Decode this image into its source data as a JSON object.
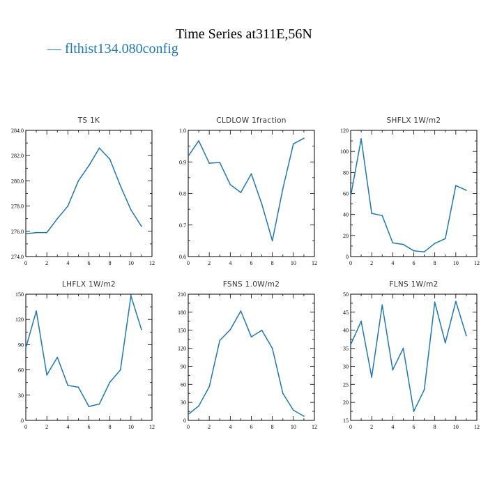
{
  "figure": {
    "title": "Time Series at311E,56N",
    "legend_label": "— flthist134.080config",
    "series_color": "#1f77b4"
  },
  "chart_data": [
    {
      "type": "line",
      "title": "TS   1K",
      "x": [
        0,
        1,
        2,
        3,
        4,
        5,
        6,
        7,
        8,
        9,
        10,
        11
      ],
      "series": [
        {
          "values": [
            275.8,
            275.9,
            275.9,
            277.0,
            278.0,
            280.0,
            281.2,
            282.6,
            281.7,
            279.6,
            277.7,
            276.4
          ]
        }
      ],
      "xlim": [
        0,
        12
      ],
      "ylim": [
        274,
        284
      ],
      "xticks": [
        0,
        2,
        4,
        6,
        8,
        10,
        12
      ],
      "yticks": [
        274,
        276,
        278,
        280,
        282,
        284
      ],
      "ytick_labels": [
        "274.0",
        "276.0",
        "278.0",
        "280.0",
        "282.0",
        "284.0"
      ]
    },
    {
      "type": "line",
      "title": "CLDLOW   1fraction",
      "x": [
        0,
        1,
        2,
        3,
        4,
        5,
        6,
        7,
        8,
        9,
        10,
        11
      ],
      "series": [
        {
          "values": [
            0.918,
            0.967,
            0.896,
            0.898,
            0.828,
            0.803,
            0.862,
            0.766,
            0.65,
            0.815,
            0.957,
            0.975
          ]
        }
      ],
      "xlim": [
        0,
        12
      ],
      "ylim": [
        0.6,
        1.0
      ],
      "xticks": [
        0,
        2,
        4,
        6,
        8,
        10,
        12
      ],
      "yticks": [
        0.6,
        0.7,
        0.8,
        0.9,
        1.0
      ],
      "ytick_labels": [
        "0.6",
        "0.7",
        "0.8",
        "0.9",
        "1.0"
      ]
    },
    {
      "type": "line",
      "title": "SHFLX   1W/m2",
      "x": [
        0,
        1,
        2,
        3,
        4,
        5,
        6,
        7,
        8,
        9,
        10,
        11
      ],
      "series": [
        {
          "values": [
            57,
            112,
            41,
            39,
            13,
            11.5,
            5.5,
            4.5,
            12.5,
            17,
            67.5,
            63
          ]
        }
      ],
      "xlim": [
        0,
        12
      ],
      "ylim": [
        0,
        120
      ],
      "xticks": [
        0,
        2,
        4,
        6,
        8,
        10,
        12
      ],
      "yticks": [
        0,
        20,
        40,
        60,
        80,
        100,
        120
      ],
      "ytick_labels": [
        "0",
        "20",
        "40",
        "60",
        "80",
        "100",
        "120"
      ]
    },
    {
      "type": "line",
      "title": "LHFLX   1W/m2",
      "x": [
        0,
        1,
        2,
        3,
        4,
        5,
        6,
        7,
        8,
        9,
        10,
        11
      ],
      "series": [
        {
          "values": [
            86,
            130,
            54,
            75,
            41.5,
            39.5,
            16.5,
            19.5,
            45.5,
            60,
            148,
            108
          ]
        }
      ],
      "xlim": [
        0,
        12
      ],
      "ylim": [
        0,
        150
      ],
      "xticks": [
        0,
        2,
        4,
        6,
        8,
        10,
        12
      ],
      "yticks": [
        0,
        30,
        60,
        90,
        120,
        150
      ],
      "ytick_labels": [
        "0",
        "30",
        "60",
        "90",
        "120",
        "150"
      ]
    },
    {
      "type": "line",
      "title": "FSNS   1.0W/m2",
      "x": [
        0,
        1,
        2,
        3,
        4,
        5,
        6,
        7,
        8,
        9,
        10,
        11
      ],
      "series": [
        {
          "values": [
            10,
            24,
            56,
            133,
            151,
            182,
            139,
            150,
            120,
            45,
            17,
            7
          ]
        }
      ],
      "xlim": [
        0,
        12
      ],
      "ylim": [
        0,
        210
      ],
      "xticks": [
        0,
        2,
        4,
        6,
        8,
        10,
        12
      ],
      "yticks": [
        0,
        30,
        60,
        90,
        120,
        150,
        180,
        210
      ],
      "ytick_labels": [
        "0",
        "30",
        "60",
        "90",
        "120",
        "150",
        "180",
        "210"
      ]
    },
    {
      "type": "line",
      "title": "FLNS   1W/m2",
      "x": [
        0,
        1,
        2,
        3,
        4,
        5,
        6,
        7,
        8,
        9,
        10,
        11
      ],
      "series": [
        {
          "values": [
            36,
            42.5,
            27,
            47,
            29,
            35,
            17.5,
            23.5,
            47.8,
            36.5,
            48,
            38.5
          ]
        }
      ],
      "xlim": [
        0,
        12
      ],
      "ylim": [
        15,
        50
      ],
      "xticks": [
        0,
        2,
        4,
        6,
        8,
        10,
        12
      ],
      "yticks": [
        15,
        20,
        25,
        30,
        35,
        40,
        45,
        50
      ],
      "ytick_labels": [
        "15",
        "20",
        "25",
        "30",
        "35",
        "40",
        "45",
        "50"
      ]
    }
  ]
}
